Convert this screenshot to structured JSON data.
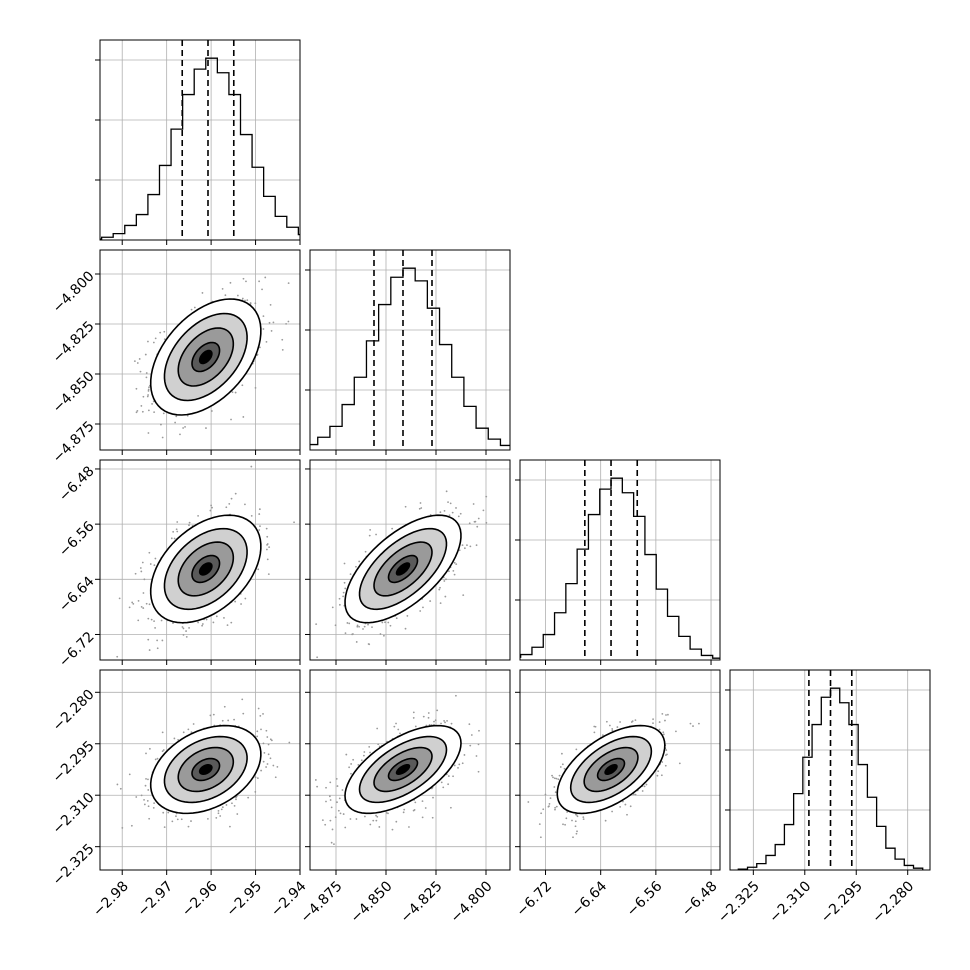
{
  "chart_data": {
    "type": "corner",
    "parameters": [
      {
        "axis_range": [
          -2.985,
          -2.94
        ],
        "ticks": [
          -2.98,
          -2.97,
          -2.96,
          -2.95,
          -2.94
        ],
        "tick_labels": [
          "−2.98",
          "−2.97",
          "−2.96",
          "−2.95",
          "−2.94"
        ],
        "mean": -2.9612,
        "sigma": 0.0062,
        "quantiles": [
          -2.9665,
          -2.9607,
          -2.9549
        ]
      },
      {
        "axis_range": [
          -4.888,
          -4.788
        ],
        "ticks": [
          -4.875,
          -4.85,
          -4.825,
          -4.8
        ],
        "tick_labels": [
          "−4.875",
          "−4.850",
          "−4.825",
          "−4.800"
        ],
        "mean": -4.8415,
        "sigma": 0.0145,
        "quantiles": [
          -4.856,
          -4.8415,
          -4.827
        ]
      },
      {
        "axis_range": [
          -6.757,
          -6.467
        ],
        "ticks": [
          -6.72,
          -6.64,
          -6.56,
          -6.48
        ],
        "tick_labels": [
          "−6.72",
          "−6.64",
          "−6.56",
          "−6.48"
        ],
        "mean": -6.625,
        "sigma": 0.039,
        "quantiles": [
          -6.663,
          -6.625,
          -6.587
        ]
      },
      {
        "axis_range": [
          -2.3318,
          -2.2735
        ],
        "ticks": [
          -2.325,
          -2.31,
          -2.295,
          -2.28
        ],
        "tick_labels": [
          "−2.325",
          "−2.310",
          "−2.295",
          "−2.280"
        ],
        "mean": -2.3025,
        "sigma": 0.0064,
        "quantiles": [
          -2.3088,
          -2.3025,
          -2.2963
        ]
      }
    ],
    "histograms": [
      {
        "bins": 20,
        "counts": [
          0.5,
          1.5,
          3.5,
          8,
          14,
          25,
          41,
          61,
          80,
          94,
          100,
          92,
          80,
          58,
          40,
          24,
          13,
          7,
          3,
          1
        ]
      },
      {
        "bins": 20,
        "counts": [
          0.5,
          1.5,
          3,
          7,
          13,
          25,
          40,
          60,
          80,
          95,
          100,
          93,
          78,
          58,
          40,
          24,
          12,
          6,
          2.5,
          1
        ]
      },
      {
        "bins": 20,
        "counts": [
          0.5,
          1.5,
          3,
          7,
          14,
          26,
          42,
          61,
          80,
          94,
          100,
          92,
          79,
          58,
          39,
          24,
          13,
          6,
          2.5,
          1
        ]
      },
      {
        "bins": 20,
        "counts": [
          0.5,
          1.5,
          3.5,
          8,
          14,
          25,
          42,
          62,
          80,
          95,
          100,
          92,
          80,
          58,
          40,
          24,
          12,
          6,
          2.5,
          1
        ]
      }
    ],
    "correlations": {
      "1,0": 0.45,
      "2,0": 0.42,
      "2,1": 0.62,
      "3,0": 0.35,
      "3,1": 0.6,
      "3,2": 0.55
    },
    "contour_levels_sigma": [
      0.5,
      1.0,
      1.5,
      2.0
    ],
    "grid": true,
    "quantile_lines": "dashed"
  }
}
